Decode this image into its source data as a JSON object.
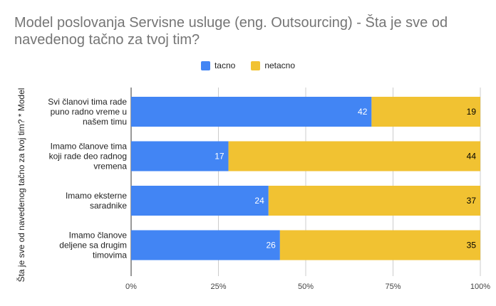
{
  "chart_data": {
    "type": "bar",
    "orientation": "horizontal",
    "stacked": "percent",
    "title": "Model poslovanja Servisne usluge (eng. Outsourcing) - Šta je sve od navedenog tačno za tvoj tim?",
    "ylabel": "Šta je sve od navedenog tačno za tvoj tim? * Model",
    "xlabel": "",
    "categories": [
      [
        "Svi članovi tima rade",
        "puno radno vreme u",
        "našem timu"
      ],
      [
        "Imamo članove tima",
        "koji rade deo radnog",
        "vremena"
      ],
      [
        "Imamo eksterne",
        "saradnike"
      ],
      [
        "Imamo članove",
        "deljene sa drugim",
        "timovima"
      ]
    ],
    "series": [
      {
        "name": "tacno",
        "values": [
          42,
          17,
          24,
          26
        ],
        "color": "#4285f4"
      },
      {
        "name": "netacno",
        "values": [
          19,
          44,
          37,
          35
        ],
        "color": "#f1c232"
      }
    ],
    "xticks": [
      "0%",
      "25%",
      "50%",
      "75%",
      "100%"
    ],
    "xlim": [
      0,
      100
    ],
    "legend_position": "top-center",
    "grid": "vertical"
  }
}
